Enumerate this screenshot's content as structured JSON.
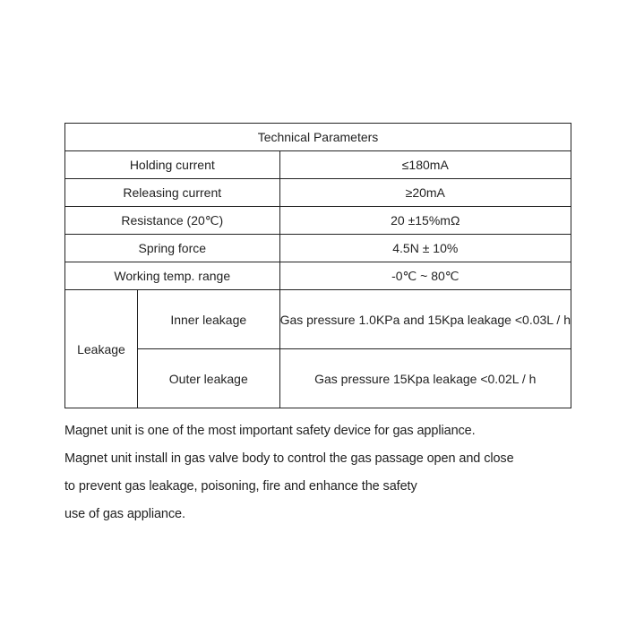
{
  "table": {
    "title": "Technical Parameters",
    "rows": [
      {
        "label": "Holding  current",
        "value": "≤180mA"
      },
      {
        "label": "Releasing current",
        "value": "≥20mA"
      },
      {
        "label": "Resistance (20℃)",
        "value": "20 ±15%mΩ"
      },
      {
        "label": "Spring force",
        "value": "4.5N ± 10%"
      },
      {
        "label": "Working temp. range",
        "value": "-0℃ ~ 80℃"
      }
    ],
    "leakage": {
      "label": "Leakage",
      "items": [
        {
          "label": "Inner leakage",
          "value": "Gas pressure 1.0KPa and 15Kpa leakage <0.03L / h"
        },
        {
          "label": "Outer leakage",
          "value": "Gas pressure 15Kpa leakage <0.02L / h"
        }
      ]
    }
  },
  "description": [
    "Magnet unit is one of the most important safety device for gas appliance.",
    "Magnet unit install in gas valve body to control the gas passage open and close",
    "to prevent gas leakage, poisoning, fire and enhance the safety",
    "use of gas appliance."
  ]
}
